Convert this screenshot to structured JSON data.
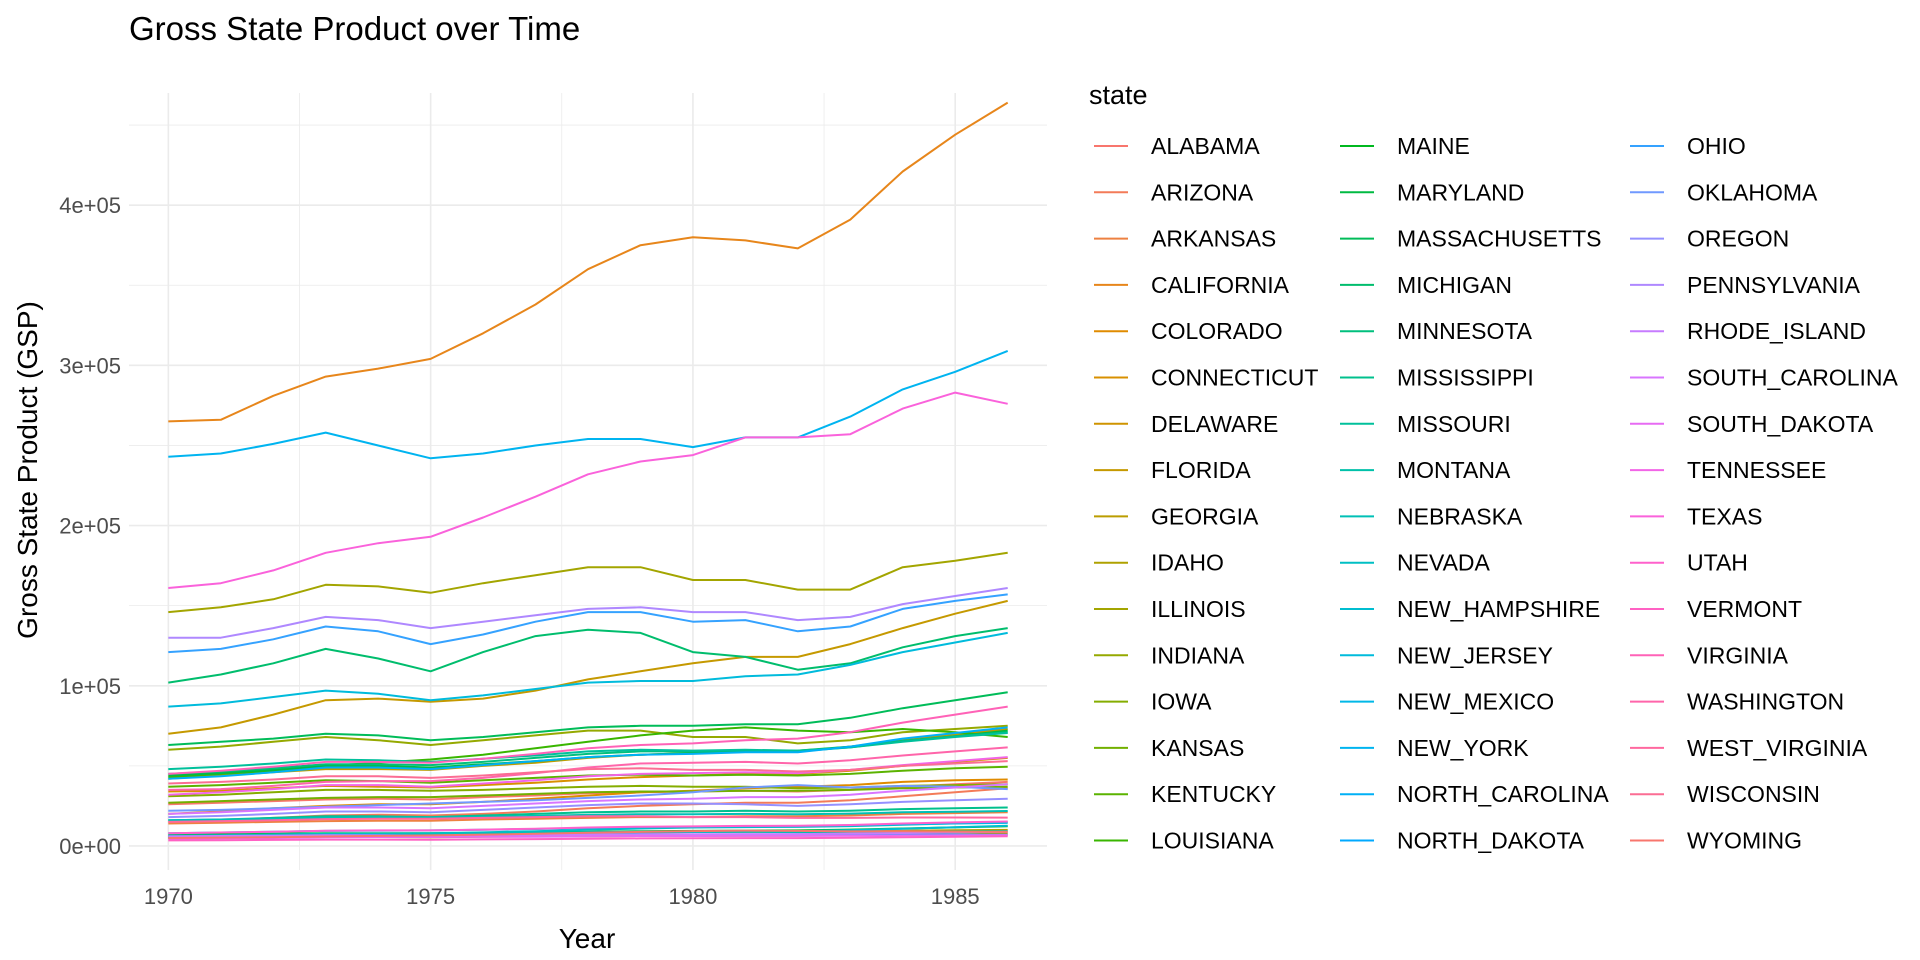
{
  "chart_data": {
    "type": "line",
    "title": "Gross State Product over Time",
    "xlabel": "Year",
    "ylabel": "Gross State Product (GSP)",
    "xlim": [
      1969.25,
      1986.75
    ],
    "ylim": [
      -15000,
      470000
    ],
    "x_ticks": [
      1970,
      1975,
      1980,
      1985
    ],
    "y_ticks": [
      {
        "value": 0,
        "label": "0e+00"
      },
      {
        "value": 100000,
        "label": "1e+05"
      },
      {
        "value": 200000,
        "label": "2e+05"
      },
      {
        "value": 300000,
        "label": "3e+05"
      },
      {
        "value": 400000,
        "label": "4e+05"
      }
    ],
    "grid": true,
    "legend_title": "state",
    "legend_position": "right",
    "x": [
      1970,
      1971,
      1972,
      1973,
      1974,
      1975,
      1976,
      1977,
      1978,
      1979,
      1980,
      1981,
      1982,
      1983,
      1984,
      1985,
      1986
    ],
    "series": [
      {
        "name": "ALABAMA",
        "color": "#F8766D",
        "values": [
          26000,
          27000,
          28000,
          29000,
          29500,
          29000,
          30500,
          31500,
          33000,
          33500,
          34000,
          34500,
          34000,
          35000,
          37000,
          38500,
          40000
        ]
      },
      {
        "name": "ARIZONA",
        "color": "#F37B59",
        "values": [
          15000,
          16000,
          17500,
          19000,
          19500,
          19000,
          20000,
          21500,
          23500,
          25000,
          26000,
          27000,
          27000,
          28500,
          31000,
          33500,
          36000
        ]
      },
      {
        "name": "ARKANSAS",
        "color": "#ED8141",
        "values": [
          14000,
          14500,
          15000,
          15500,
          15800,
          15800,
          16500,
          17000,
          17500,
          18000,
          18000,
          18500,
          18500,
          19000,
          20000,
          20500,
          21000
        ]
      },
      {
        "name": "CALIFORNIA",
        "color": "#E7861B",
        "values": [
          265000,
          266000,
          281000,
          293000,
          298000,
          304000,
          320000,
          338000,
          360000,
          375000,
          380000,
          378000,
          373000,
          391000,
          421000,
          444000,
          464000
        ]
      },
      {
        "name": "COLORADO",
        "color": "#E08B00",
        "values": [
          20000,
          21500,
          23500,
          25000,
          26000,
          26000,
          27500,
          29500,
          31500,
          33500,
          34500,
          36000,
          37000,
          38000,
          40000,
          41000,
          41500
        ]
      },
      {
        "name": "CONNECTICUT",
        "color": "#D89000",
        "values": [
          34000,
          34500,
          36000,
          37500,
          37000,
          36500,
          38000,
          39500,
          41500,
          43000,
          44000,
          45000,
          45000,
          47000,
          50000,
          52500,
          55000
        ]
      },
      {
        "name": "DELAWARE",
        "color": "#CF9400",
        "values": [
          5000,
          5200,
          5400,
          5600,
          5600,
          5500,
          5700,
          5900,
          6100,
          6200,
          6300,
          6400,
          6400,
          6600,
          7000,
          7300,
          7600
        ]
      },
      {
        "name": "FLORIDA",
        "color": "#C59900",
        "values": [
          70000,
          74000,
          82000,
          91000,
          92000,
          90000,
          92000,
          97000,
          104000,
          109000,
          114000,
          118000,
          118000,
          126000,
          136000,
          145000,
          153000
        ]
      },
      {
        "name": "GEORGIA",
        "color": "#BB9D00",
        "values": [
          42000,
          44000,
          46000,
          48000,
          48000,
          47500,
          50000,
          52000,
          55000,
          57000,
          58000,
          59000,
          59000,
          62000,
          66000,
          69500,
          73000
        ]
      },
      {
        "name": "IDAHO",
        "color": "#AFA100",
        "values": [
          6000,
          6300,
          6700,
          7100,
          7300,
          7200,
          7500,
          7800,
          8200,
          8500,
          8700,
          8800,
          8700,
          9000,
          9500,
          9800,
          10000
        ]
      },
      {
        "name": "ILLINOIS",
        "color": "#A3A500",
        "values": [
          146000,
          149000,
          154000,
          163000,
          162000,
          158000,
          164000,
          169000,
          174000,
          174000,
          166000,
          166000,
          160000,
          160000,
          174000,
          178000,
          183000
        ]
      },
      {
        "name": "INDIANA",
        "color": "#95A900",
        "values": [
          60000,
          62000,
          65000,
          68000,
          66000,
          63000,
          66000,
          69000,
          72000,
          72000,
          68000,
          68000,
          64000,
          66000,
          71000,
          73000,
          75000
        ]
      },
      {
        "name": "IOWA",
        "color": "#85AD00",
        "values": [
          31000,
          32000,
          33500,
          35000,
          35000,
          34500,
          35000,
          36000,
          37000,
          37500,
          37000,
          37000,
          36000,
          36500,
          37500,
          38000,
          38500
        ]
      },
      {
        "name": "KANSAS",
        "color": "#72B000",
        "values": [
          27000,
          28000,
          29000,
          30000,
          30500,
          30500,
          31500,
          32500,
          33500,
          34000,
          34000,
          34500,
          34500,
          35000,
          36000,
          36500,
          37000
        ]
      },
      {
        "name": "KENTUCKY",
        "color": "#5BB300",
        "values": [
          37000,
          38000,
          39500,
          41000,
          40500,
          39500,
          41000,
          42500,
          44000,
          44500,
          44000,
          44500,
          44000,
          45000,
          47000,
          48500,
          49500
        ]
      },
      {
        "name": "LOUISIANA",
        "color": "#39B600",
        "values": [
          43000,
          45000,
          47000,
          50000,
          52000,
          54000,
          57000,
          61000,
          65000,
          69000,
          72000,
          74000,
          72000,
          71000,
          73000,
          71000,
          68000
        ]
      },
      {
        "name": "MAINE",
        "color": "#00B81F",
        "values": [
          7000,
          7300,
          7600,
          8000,
          8000,
          7900,
          8200,
          8500,
          8900,
          9200,
          9400,
          9600,
          9700,
          10200,
          10900,
          11600,
          12300
        ]
      },
      {
        "name": "MARYLAND",
        "color": "#00BA42",
        "values": [
          44000,
          45500,
          47500,
          50000,
          50000,
          49000,
          51000,
          53000,
          55500,
          57000,
          58000,
          59000,
          59500,
          62000,
          65500,
          68500,
          72000
        ]
      },
      {
        "name": "MASSACHUSETTS",
        "color": "#00BC59",
        "values": [
          63000,
          65000,
          67000,
          70000,
          69000,
          66000,
          68000,
          71000,
          74000,
          75000,
          75000,
          76000,
          76000,
          80000,
          86000,
          91000,
          96000
        ]
      },
      {
        "name": "MICHIGAN",
        "color": "#00BD6D",
        "values": [
          102000,
          107000,
          114000,
          123000,
          117000,
          109000,
          121000,
          131000,
          135000,
          133000,
          121000,
          118000,
          110000,
          114000,
          124000,
          131000,
          136000
        ]
      },
      {
        "name": "MINNESOTA",
        "color": "#00BF7D",
        "values": [
          45000,
          46500,
          48500,
          51000,
          51000,
          50500,
          52500,
          55000,
          57500,
          59000,
          59000,
          59500,
          59000,
          61500,
          65500,
          68500,
          71000
        ]
      },
      {
        "name": "MISSISSIPPI",
        "color": "#00C08D",
        "values": [
          16000,
          16500,
          17500,
          18500,
          18500,
          18000,
          19000,
          20000,
          21000,
          21500,
          21500,
          22000,
          21500,
          22000,
          23000,
          23500,
          24000
        ]
      },
      {
        "name": "MISSOURI",
        "color": "#00C09B",
        "values": [
          48000,
          49500,
          51500,
          54000,
          53500,
          52500,
          54500,
          56500,
          59000,
          60000,
          59500,
          60000,
          59500,
          61500,
          65000,
          68000,
          70500
        ]
      },
      {
        "name": "MONTANA",
        "color": "#00C1A9",
        "values": [
          6500,
          6800,
          7200,
          7700,
          7800,
          7700,
          8000,
          8300,
          8700,
          9000,
          9000,
          8900,
          8600,
          8800,
          9000,
          9100,
          9200
        ]
      },
      {
        "name": "NEBRASKA",
        "color": "#00C0B6",
        "values": [
          16000,
          16500,
          17000,
          17800,
          18000,
          17800,
          18200,
          18800,
          19400,
          19800,
          19800,
          20000,
          19800,
          20200,
          21000,
          21400,
          21800
        ]
      },
      {
        "name": "NEVADA",
        "color": "#00BFC4",
        "values": [
          6000,
          6400,
          6900,
          7500,
          7800,
          8000,
          8500,
          9200,
          10100,
          10900,
          11500,
          11800,
          11900,
          12400,
          13200,
          14100,
          15000
        ]
      },
      {
        "name": "NEW_HAMPSHIRE",
        "color": "#00BDD0",
        "values": [
          5500,
          5800,
          6200,
          6600,
          6600,
          6500,
          6900,
          7400,
          8000,
          8400,
          8700,
          9000,
          9300,
          9900,
          10800,
          11700,
          12600
        ]
      },
      {
        "name": "NEW_JERSEY",
        "color": "#00BBDC",
        "values": [
          87000,
          89000,
          93000,
          97000,
          95000,
          91000,
          94000,
          98000,
          102000,
          103000,
          103000,
          106000,
          107000,
          113000,
          121000,
          127000,
          133000
        ]
      },
      {
        "name": "NEW_MEXICO",
        "color": "#00B8E7",
        "values": [
          8000,
          8400,
          8900,
          9400,
          9600,
          9700,
          10100,
          10600,
          11200,
          11700,
          12000,
          12300,
          12400,
          12900,
          13500,
          14000,
          14400
        ]
      },
      {
        "name": "NEW_YORK",
        "color": "#00B4F0",
        "values": [
          243000,
          245000,
          251000,
          258000,
          250000,
          242000,
          245000,
          250000,
          254000,
          254000,
          249000,
          255000,
          255000,
          268000,
          285000,
          296000,
          309000
        ]
      },
      {
        "name": "NORTH_CAROLINA",
        "color": "#00B0F6",
        "values": [
          42000,
          43500,
          46000,
          49000,
          49000,
          48000,
          50500,
          53000,
          55500,
          57000,
          57500,
          58500,
          58500,
          62000,
          67000,
          70500,
          74000
        ]
      },
      {
        "name": "NORTH_DAKOTA",
        "color": "#00A9FF",
        "values": [
          5000,
          5300,
          5800,
          6600,
          6800,
          6500,
          6400,
          6400,
          6700,
          6900,
          6800,
          6900,
          6800,
          6900,
          7100,
          7100,
          7000
        ]
      },
      {
        "name": "OHIO",
        "color": "#35A2FF",
        "values": [
          121000,
          123000,
          129000,
          137000,
          134000,
          126000,
          132000,
          140000,
          146000,
          146000,
          140000,
          141000,
          134000,
          137000,
          148000,
          153000,
          157000
        ]
      },
      {
        "name": "OKLAHOMA",
        "color": "#7099FF",
        "values": [
          22000,
          22500,
          23500,
          24500,
          25500,
          26500,
          27500,
          28500,
          30000,
          31500,
          33500,
          36500,
          38000,
          36500,
          37500,
          37000,
          35500
        ]
      },
      {
        "name": "OREGON",
        "color": "#9590FF",
        "values": [
          18000,
          18800,
          20000,
          21500,
          21500,
          21000,
          22500,
          24000,
          25500,
          26500,
          26500,
          26000,
          25000,
          26000,
          27500,
          28500,
          29500
        ]
      },
      {
        "name": "PENNSYLVANIA",
        "color": "#AF88FF",
        "values": [
          130000,
          130000,
          136000,
          143000,
          141000,
          136000,
          140000,
          144000,
          148000,
          149000,
          146000,
          146000,
          141000,
          143000,
          151000,
          156000,
          161000
        ]
      },
      {
        "name": "RHODE_ISLAND",
        "color": "#C77CFF",
        "values": [
          6000,
          6200,
          6400,
          6700,
          6600,
          6400,
          6600,
          6800,
          7100,
          7300,
          7300,
          7400,
          7400,
          7700,
          8100,
          8500,
          8900
        ]
      },
      {
        "name": "SOUTH_CAROLINA",
        "color": "#D875FF",
        "values": [
          20000,
          21000,
          22500,
          24000,
          24000,
          23500,
          25000,
          26500,
          28000,
          29000,
          29500,
          30500,
          30500,
          32000,
          34500,
          36500,
          38500
        ]
      },
      {
        "name": "SOUTH_DAKOTA",
        "color": "#E76BF3",
        "values": [
          4500,
          4700,
          5000,
          5500,
          5600,
          5600,
          5700,
          5800,
          6000,
          6200,
          6200,
          6300,
          6300,
          6400,
          6600,
          6700,
          6800
        ]
      },
      {
        "name": "TENNESSEE",
        "color": "#F265E7",
        "values": [
          32000,
          33500,
          35500,
          38000,
          38000,
          37000,
          39000,
          41000,
          43500,
          45000,
          45500,
          46000,
          45500,
          47500,
          50500,
          53000,
          55500
        ]
      },
      {
        "name": "TEXAS",
        "color": "#FA62DB",
        "values": [
          161000,
          164000,
          172000,
          183000,
          189000,
          193000,
          205000,
          218000,
          232000,
          240000,
          244000,
          255000,
          255000,
          257000,
          273000,
          283000,
          276000
        ]
      },
      {
        "name": "UTAH",
        "color": "#FF61CC",
        "values": [
          8000,
          8400,
          8900,
          9500,
          9700,
          9700,
          10200,
          10800,
          11500,
          12000,
          12200,
          12500,
          12600,
          13100,
          14000,
          14700,
          15300
        ]
      },
      {
        "name": "VERMONT",
        "color": "#FF61C3",
        "values": [
          3500,
          3600,
          3800,
          4000,
          4000,
          3900,
          4100,
          4300,
          4500,
          4700,
          4800,
          4900,
          4900,
          5100,
          5500,
          5800,
          6100
        ]
      },
      {
        "name": "VIRGINIA",
        "color": "#FF62B7",
        "values": [
          45000,
          47000,
          49500,
          52500,
          52500,
          52000,
          54500,
          57500,
          61000,
          63000,
          64000,
          66000,
          67000,
          71000,
          77000,
          82000,
          87000
        ]
      },
      {
        "name": "WASHINGTON",
        "color": "#FF65AA",
        "values": [
          35000,
          35500,
          37500,
          40000,
          40500,
          40500,
          42500,
          45500,
          49000,
          51500,
          52000,
          52500,
          51500,
          53500,
          56500,
          59000,
          61500
        ]
      },
      {
        "name": "WEST_VIRGINIA",
        "color": "#FF689F",
        "values": [
          15000,
          15500,
          16000,
          16800,
          17000,
          17000,
          17500,
          18000,
          18500,
          18500,
          18000,
          18000,
          17500,
          17500,
          17800,
          17800,
          17700
        ]
      },
      {
        "name": "WISCONSIN",
        "color": "#FB6D93",
        "values": [
          39000,
          40000,
          41500,
          43500,
          43500,
          42500,
          44000,
          46000,
          48000,
          48500,
          47500,
          47500,
          46500,
          47500,
          50000,
          51500,
          53000
        ]
      },
      {
        "name": "WYOMING",
        "color": "#F8766D",
        "values": [
          5000,
          5200,
          5500,
          5900,
          6300,
          6600,
          7100,
          7600,
          8200,
          8800,
          9300,
          9600,
          9400,
          9100,
          9200,
          9000,
          8700
        ]
      }
    ]
  }
}
